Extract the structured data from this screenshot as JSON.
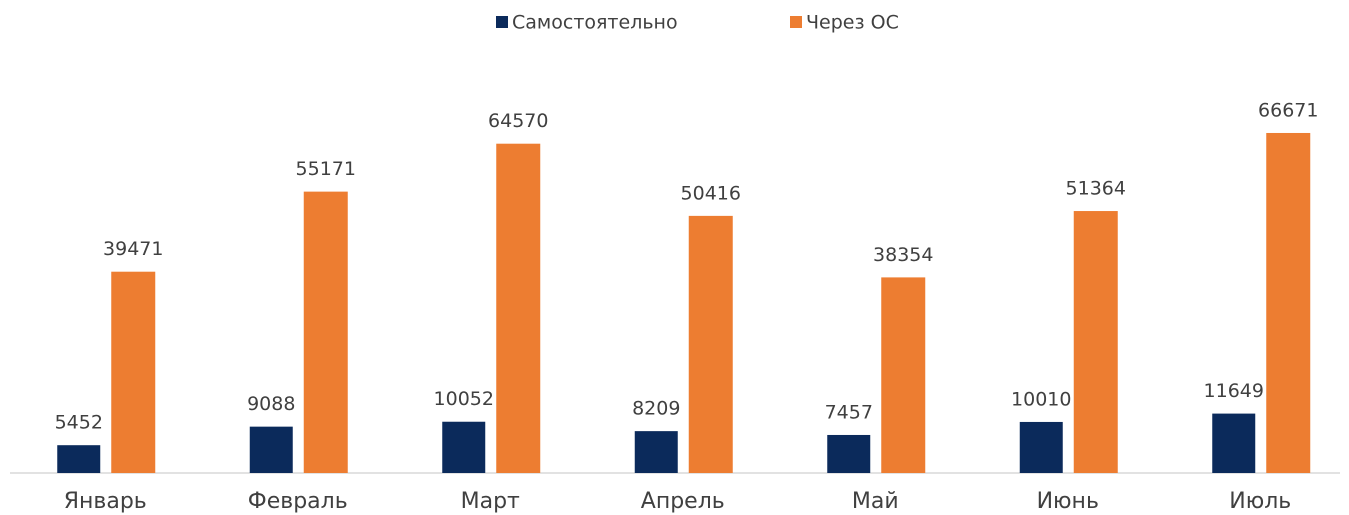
{
  "chart_data": {
    "type": "bar",
    "categories": [
      "Январь",
      "Февраль",
      "Март",
      "Апрель",
      "Май",
      "Июнь",
      "Июль"
    ],
    "series": [
      {
        "name": "Самостоятельно",
        "color": "#0b2a5b",
        "values": [
          5452,
          9088,
          10052,
          8209,
          7457,
          10010,
          11649
        ]
      },
      {
        "name": "Через ОС",
        "color": "#ed7d31",
        "values": [
          39471,
          55171,
          64570,
          50416,
          38354,
          51364,
          66671
        ]
      }
    ],
    "ylim": [
      0,
      70000
    ],
    "legend": "top"
  }
}
